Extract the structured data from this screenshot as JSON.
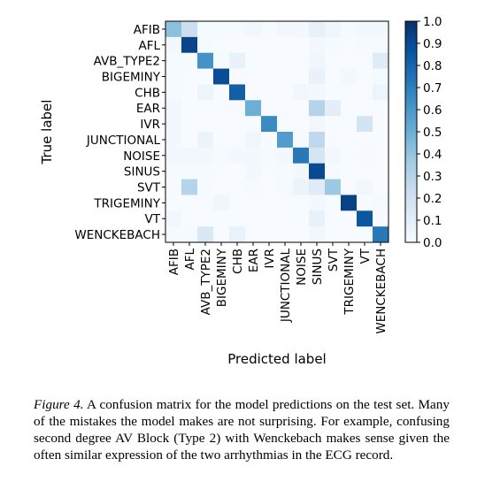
{
  "chart_data": {
    "type": "heatmap",
    "title": "",
    "xlabel": "Predicted label",
    "ylabel": "True label",
    "row_labels": [
      "AFIB",
      "AFL",
      "AVB_TYPE2",
      "BIGEMINY",
      "CHB",
      "EAR",
      "IVR",
      "JUNCTIONAL",
      "NOISE",
      "SINUS",
      "SVT",
      "TRIGEMINY",
      "VT",
      "WENCKEBACH"
    ],
    "col_labels": [
      "AFIB",
      "AFL",
      "AVB_TYPE2",
      "BIGEMINY",
      "CHB",
      "EAR",
      "IVR",
      "JUNCTIONAL",
      "NOISE",
      "SINUS",
      "SVT",
      "TRIGEMINY",
      "VT",
      "WENCKEBACH"
    ],
    "values": [
      [
        0.42,
        0.22,
        0.01,
        0.01,
        0.01,
        0.03,
        0.01,
        0.03,
        0.02,
        0.08,
        0.04,
        0.01,
        0.02,
        0.02
      ],
      [
        0.02,
        0.92,
        0.01,
        0.0,
        0.0,
        0.0,
        0.0,
        0.0,
        0.0,
        0.02,
        0.01,
        0.0,
        0.01,
        0.01
      ],
      [
        0.01,
        0.01,
        0.62,
        0.01,
        0.07,
        0.0,
        0.0,
        0.0,
        0.0,
        0.04,
        0.0,
        0.0,
        0.0,
        0.12
      ],
      [
        0.01,
        0.0,
        0.0,
        0.89,
        0.0,
        0.0,
        0.0,
        0.0,
        0.0,
        0.07,
        0.0,
        0.02,
        0.0,
        0.01
      ],
      [
        0.01,
        0.0,
        0.05,
        0.0,
        0.82,
        0.0,
        0.0,
        0.0,
        0.03,
        0.02,
        0.0,
        0.0,
        0.0,
        0.05
      ],
      [
        0.03,
        0.0,
        0.0,
        0.0,
        0.0,
        0.5,
        0.0,
        0.0,
        0.0,
        0.3,
        0.1,
        0.0,
        0.0,
        0.0
      ],
      [
        0.03,
        0.0,
        0.0,
        0.0,
        0.0,
        0.0,
        0.65,
        0.0,
        0.0,
        0.03,
        0.0,
        0.0,
        0.18,
        0.0
      ],
      [
        0.02,
        0.0,
        0.06,
        0.0,
        0.0,
        0.04,
        0.0,
        0.58,
        0.01,
        0.27,
        0.0,
        0.0,
        0.0,
        0.0
      ],
      [
        0.03,
        0.03,
        0.02,
        0.01,
        0.02,
        0.02,
        0.01,
        0.02,
        0.72,
        0.17,
        0.02,
        0.0,
        0.01,
        0.0
      ],
      [
        0.01,
        0.01,
        0.01,
        0.0,
        0.0,
        0.02,
        0.0,
        0.01,
        0.02,
        0.9,
        0.01,
        0.0,
        0.0,
        0.0
      ],
      [
        0.01,
        0.3,
        0.01,
        0.0,
        0.0,
        0.01,
        0.0,
        0.01,
        0.06,
        0.12,
        0.38,
        0.0,
        0.03,
        0.0
      ],
      [
        0.0,
        0.0,
        0.0,
        0.04,
        0.0,
        0.0,
        0.0,
        0.0,
        0.0,
        0.02,
        0.0,
        0.93,
        0.0,
        0.01
      ],
      [
        0.03,
        0.0,
        0.0,
        0.0,
        0.0,
        0.0,
        0.0,
        0.0,
        0.0,
        0.08,
        0.0,
        0.0,
        0.85,
        0.0
      ],
      [
        0.01,
        0.01,
        0.15,
        0.0,
        0.07,
        0.0,
        0.0,
        0.0,
        0.0,
        0.03,
        0.0,
        0.0,
        0.0,
        0.72
      ]
    ],
    "colorbar": {
      "range": [
        0.0,
        1.0
      ],
      "ticks": [
        "0.0",
        "0.1",
        "0.2",
        "0.3",
        "0.4",
        "0.5",
        "0.6",
        "0.7",
        "0.8",
        "0.9",
        "1.0"
      ],
      "colormap": "Blues",
      "low_color": "#f7fbff",
      "high_color": "#08306b"
    },
    "grid": false,
    "legend": "colorbar-right"
  },
  "caption": {
    "lead": "Figure 4.",
    "text": "A confusion matrix for the model predictions on the test set. Many of the mistakes the model makes are not surprising. For example, confusing second degree AV Block (Type 2) with Wenckebach makes sense given the often similar expression of the two arrhythmias in the ECG record."
  }
}
